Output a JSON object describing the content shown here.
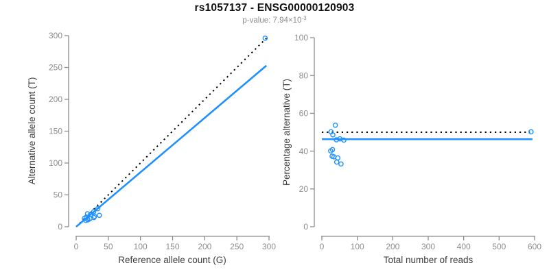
{
  "header": {
    "title": "rs1057137 - ENSG00000120903",
    "pvalue_prefix": "p-value: 7.94",
    "pvalue_base": "×10",
    "pvalue_exponent": "-3"
  },
  "colors": {
    "accent_blue": "#1E90FF",
    "axis_gray": "#8C8C8C",
    "label_dark": "#3D3D3D",
    "line_black": "#000000"
  },
  "chart_data": [
    {
      "type": "scatter",
      "title": "",
      "xlabel": "Reference allele count (G)",
      "ylabel": "Alternative allele count (T)",
      "xlim": [
        0,
        300
      ],
      "ylim": [
        0,
        300
      ],
      "xticks": [
        0,
        50,
        100,
        150,
        200,
        250,
        300
      ],
      "yticks": [
        0,
        50,
        100,
        150,
        200,
        250,
        300
      ],
      "grid": false,
      "legend": "none",
      "points": [
        [
          17.6,
          20.4
        ],
        [
          12.9,
          13.1
        ],
        [
          15.9,
          15.1
        ],
        [
          22.1,
          18.9
        ],
        [
          27.3,
          23.7
        ],
        [
          33.6,
          28.4
        ],
        [
          17.8,
          12.2
        ],
        [
          15.0,
          10.0
        ],
        [
          18.2,
          10.8
        ],
        [
          21.4,
          12.6
        ],
        [
          28.6,
          16.4
        ],
        [
          27.6,
          14.4
        ],
        [
          36.1,
          17.9
        ],
        [
          294.0,
          296.0
        ]
      ],
      "lines": [
        {
          "name": "identity-dotted-line",
          "style": "dotted",
          "color": "#000000",
          "from": [
            0,
            0
          ],
          "to": [
            296,
            296
          ]
        },
        {
          "name": "fit-line",
          "style": "solid",
          "color": "#1E90FF",
          "from": [
            0,
            0
          ],
          "to": [
            296,
            253
          ]
        }
      ]
    },
    {
      "type": "scatter",
      "title": "",
      "xlabel": "Total number of reads",
      "ylabel": "Percentage alternative (T)",
      "xlim": [
        0,
        600
      ],
      "ylim": [
        0,
        100
      ],
      "xticks": [
        0,
        100,
        200,
        300,
        400,
        500,
        600
      ],
      "yticks": [
        0,
        20,
        40,
        60,
        80,
        100
      ],
      "grid": false,
      "legend": "none",
      "points": [
        [
          38,
          53.7
        ],
        [
          26,
          50.2
        ],
        [
          31,
          48.6
        ],
        [
          41,
          46.0
        ],
        [
          51,
          46.5
        ],
        [
          62,
          45.8
        ],
        [
          30,
          40.8
        ],
        [
          25,
          40.1
        ],
        [
          29,
          37.3
        ],
        [
          34,
          37.0
        ],
        [
          45,
          36.4
        ],
        [
          42,
          34.2
        ],
        [
          54,
          33.2
        ],
        [
          590,
          50.2
        ]
      ],
      "lines": [
        {
          "name": "null-50pct-dotted-line",
          "style": "dotted",
          "color": "#000000",
          "from": [
            0,
            50
          ],
          "to": [
            587,
            50
          ]
        },
        {
          "name": "mean-pct-line",
          "style": "solid",
          "color": "#1E90FF",
          "from": [
            0,
            46.3
          ],
          "to": [
            594,
            46.3
          ]
        }
      ]
    }
  ]
}
